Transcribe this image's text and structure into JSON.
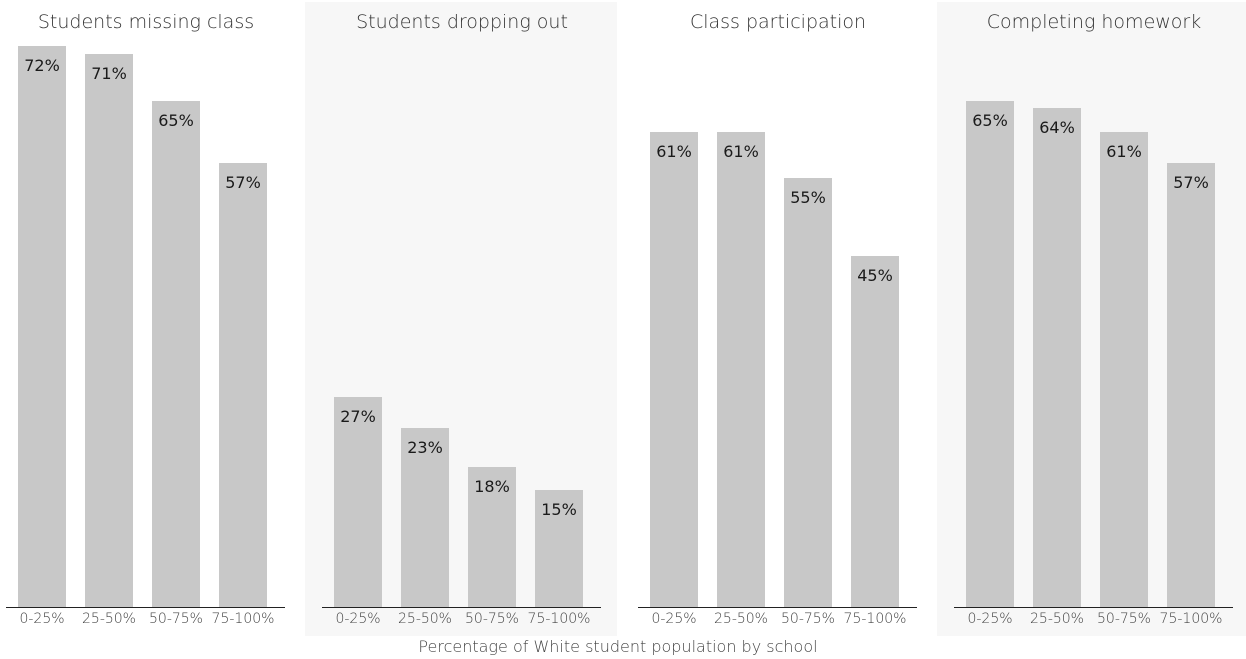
{
  "chart_data": [
    {
      "type": "bar",
      "title": "Students missing class",
      "categories": [
        "0-25%",
        "25-50%",
        "50-75%",
        "75-100%"
      ],
      "values": [
        72,
        71,
        65,
        57
      ],
      "labels": [
        "72%",
        "71%",
        "65%",
        "57%"
      ],
      "ylim": [
        0,
        72
      ]
    },
    {
      "type": "bar",
      "title": "Students dropping out",
      "categories": [
        "0-25%",
        "25-50%",
        "50-75%",
        "75-100%"
      ],
      "values": [
        27,
        23,
        18,
        15
      ],
      "labels": [
        "27%",
        "23%",
        "18%",
        "15%"
      ],
      "ylim": [
        0,
        72
      ]
    },
    {
      "type": "bar",
      "title": "Class participation",
      "categories": [
        "0-25%",
        "25-50%",
        "50-75%",
        "75-100%"
      ],
      "values": [
        61,
        61,
        55,
        45
      ],
      "labels": [
        "61%",
        "61%",
        "55%",
        "45%"
      ],
      "ylim": [
        0,
        72
      ]
    },
    {
      "type": "bar",
      "title": "Completing homework",
      "categories": [
        "0-25%",
        "25-50%",
        "50-75%",
        "75-100%"
      ],
      "values": [
        65,
        64,
        61,
        57
      ],
      "labels": [
        "65%",
        "64%",
        "61%",
        "57%"
      ],
      "ylim": [
        0,
        72
      ]
    }
  ],
  "xlabel": "Percentage of White student population by school",
  "colors": {
    "bar": "#c8c8c8",
    "panel_shade": "#f7f7f7",
    "axis": "#222222"
  }
}
